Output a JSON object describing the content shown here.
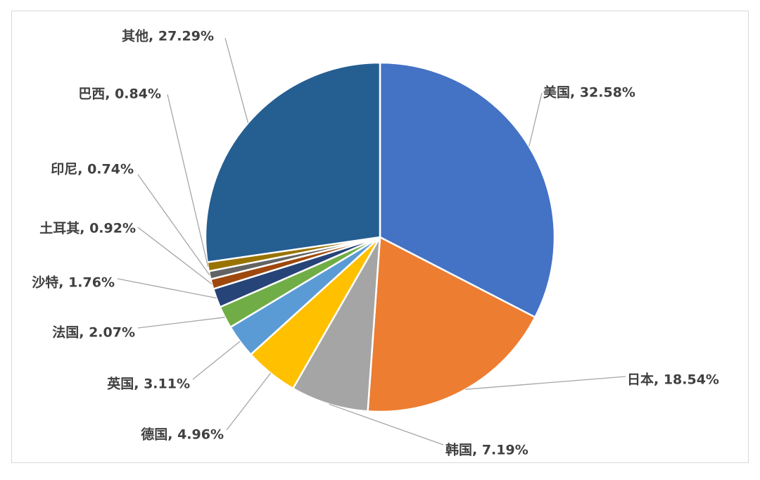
{
  "chart_data": {
    "type": "pie",
    "slices": [
      {
        "label": "美国, 32.58%",
        "name": "美国",
        "value": 32.58,
        "color": "#4472C4"
      },
      {
        "label": "日本, 18.54%",
        "name": "日本",
        "value": 18.54,
        "color": "#ED7D31"
      },
      {
        "label": "韩国, 7.19%",
        "name": "韩国",
        "value": 7.19,
        "color": "#A5A5A5"
      },
      {
        "label": "德国, 4.96%",
        "name": "德国",
        "value": 4.96,
        "color": "#FFC000"
      },
      {
        "label": "英国, 3.11%",
        "name": "英国",
        "value": 3.11,
        "color": "#5B9BD5"
      },
      {
        "label": "法国, 2.07%",
        "name": "法国",
        "value": 2.07,
        "color": "#70AD47"
      },
      {
        "label": "沙特, 1.76%",
        "name": "沙特",
        "value": 1.76,
        "color": "#264478"
      },
      {
        "label": "土耳其, 0.92%",
        "name": "土耳其",
        "value": 0.92,
        "color": "#9E480E"
      },
      {
        "label": "印尼, 0.74%",
        "name": "印尼",
        "value": 0.74,
        "color": "#636363"
      },
      {
        "label": "巴西, 0.84%",
        "name": "巴西",
        "value": 0.84,
        "color": "#997300"
      },
      {
        "label": "其他, 27.29%",
        "name": "其他",
        "value": 27.29,
        "color": "#255E91"
      }
    ],
    "start_angle_deg": 0,
    "direction": "clockwise",
    "legend": "none"
  }
}
